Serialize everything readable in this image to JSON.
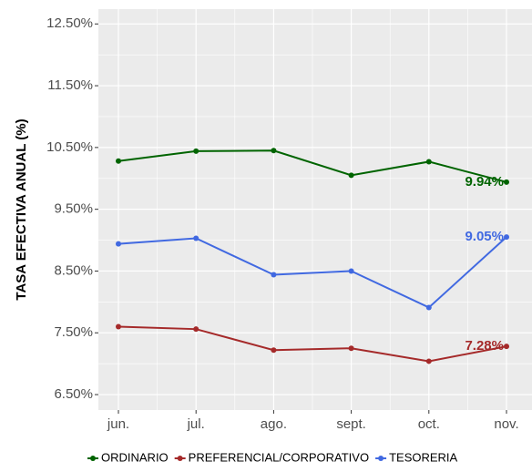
{
  "chart_data": {
    "type": "line",
    "y_label": "TASA EFECTIVA ANUAL (%)",
    "categories": [
      "jun.",
      "jul.",
      "ago.",
      "sept.",
      "oct.",
      "nov."
    ],
    "series": [
      {
        "name": "ORDINARIO",
        "color": "#006400",
        "values": [
          10.28,
          10.44,
          10.45,
          10.05,
          10.27,
          9.94
        ],
        "value_labels": [
          null,
          null,
          null,
          null,
          null,
          "9.94%"
        ]
      },
      {
        "name": "PREFERENCIAL/CORPORATIVO",
        "color": "#a52a2a",
        "values": [
          7.6,
          7.56,
          7.22,
          7.25,
          7.04,
          7.28
        ],
        "value_labels": [
          null,
          null,
          null,
          null,
          null,
          "7.28%"
        ]
      },
      {
        "name": "TESORERIA",
        "color": "#4169e1",
        "values": [
          8.94,
          9.03,
          8.44,
          8.5,
          7.91,
          9.05
        ],
        "value_labels": [
          null,
          null,
          null,
          null,
          null,
          "9.05%"
        ]
      }
    ],
    "ylim": [
      6.25,
      12.74
    ],
    "yticks": [
      {
        "value": 6.5,
        "label": "6.50%"
      },
      {
        "value": 7.5,
        "label": "7.50%"
      },
      {
        "value": 8.5,
        "label": "8.50%"
      },
      {
        "value": 9.5,
        "label": "9.50%"
      },
      {
        "value": 10.5,
        "label": "10.50%"
      },
      {
        "value": 11.5,
        "label": "11.50%"
      },
      {
        "value": 12.5,
        "label": "12.50%"
      }
    ],
    "grid": true,
    "legend": "bottom"
  }
}
